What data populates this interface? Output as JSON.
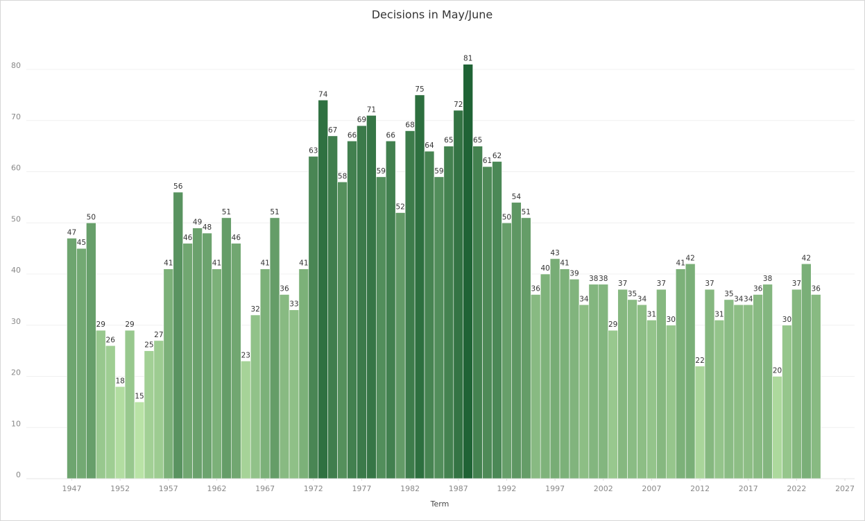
{
  "chart_data": {
    "type": "bar",
    "title": "Decisions in May/June",
    "x_label": "Term",
    "x": [
      1947,
      1948,
      1949,
      1950,
      1951,
      1952,
      1953,
      1954,
      1955,
      1956,
      1957,
      1958,
      1959,
      1960,
      1961,
      1962,
      1963,
      1964,
      1965,
      1966,
      1967,
      1968,
      1969,
      1970,
      1971,
      1972,
      1973,
      1974,
      1975,
      1976,
      1977,
      1978,
      1979,
      1980,
      1981,
      1982,
      1983,
      1984,
      1985,
      1986,
      1987,
      1988,
      1989,
      1990,
      1991,
      1992,
      1993,
      1994,
      1995,
      1996,
      1997,
      1998,
      1999,
      2000,
      2001,
      2002,
      2003,
      2004,
      2005,
      2006,
      2007,
      2008,
      2009,
      2010,
      2011,
      2012,
      2013,
      2014,
      2015,
      2016,
      2017,
      2018,
      2019,
      2020,
      2021,
      2022,
      2023,
      2024
    ],
    "values": [
      47,
      45,
      50,
      29,
      26,
      18,
      29,
      15,
      25,
      27,
      41,
      56,
      46,
      49,
      48,
      41,
      51,
      46,
      23,
      32,
      41,
      51,
      36,
      33,
      41,
      63,
      74,
      67,
      58,
      66,
      69,
      71,
      59,
      66,
      52,
      68,
      75,
      64,
      59,
      65,
      72,
      81,
      65,
      61,
      62,
      50,
      54,
      51,
      36,
      40,
      43,
      41,
      39,
      34,
      38,
      38,
      29,
      37,
      35,
      34,
      31,
      37,
      30,
      41,
      42,
      22,
      37,
      31,
      35,
      34,
      34,
      36,
      38,
      20,
      30,
      37,
      42,
      36
    ],
    "color_range": [
      "#b9e3a6",
      "#1f6335"
    ],
    "xlim": [
      1942.3,
      2028
    ],
    "xticks": [
      1947,
      1952,
      1957,
      1962,
      1967,
      1972,
      1977,
      1982,
      1987,
      1992,
      1997,
      2002,
      2007,
      2012,
      2017,
      2022,
      2027
    ],
    "ylim": [
      0,
      88
    ],
    "yticks": [
      0,
      10,
      20,
      30,
      40,
      50,
      60,
      70,
      80
    ],
    "grid": true
  }
}
